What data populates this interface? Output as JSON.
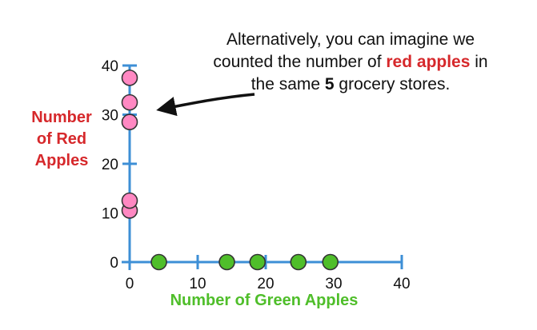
{
  "chart_data": {
    "type": "scatter",
    "xlabel": "Number of Green Apples",
    "ylabel_lines": [
      "Number",
      "of Red",
      "Apples"
    ],
    "xlim": [
      0,
      40
    ],
    "ylim": [
      0,
      40
    ],
    "x_ticks": [
      0,
      10,
      20,
      30,
      40
    ],
    "y_ticks": [
      0,
      10,
      20,
      30,
      40
    ],
    "grid": false,
    "series": [
      {
        "points": [
          {
            "x": 0,
            "y": 10.5
          },
          {
            "x": 0,
            "y": 12.5
          },
          {
            "x": 0,
            "y": 28.5
          },
          {
            "x": 0,
            "y": 32.5
          },
          {
            "x": 0,
            "y": 37.5
          }
        ],
        "color": "#ff88c2"
      },
      {
        "points": [
          {
            "x": 4.3,
            "y": 0
          },
          {
            "x": 14.3,
            "y": 0
          },
          {
            "x": 18.8,
            "y": 0
          },
          {
            "x": 24.8,
            "y": 0
          },
          {
            "x": 29.5,
            "y": 0
          }
        ],
        "color": "#4fbe2a"
      }
    ],
    "axis_color": "#3d8fd6",
    "annotation": {
      "line1": "Alternatively, you can imagine we",
      "line2_pre": "counted the number of ",
      "line2_highlight": "red apples",
      "line2_post": " in",
      "line3_pre": "the same ",
      "line3_bold": "5",
      "line3_post": " grocery stores."
    }
  }
}
